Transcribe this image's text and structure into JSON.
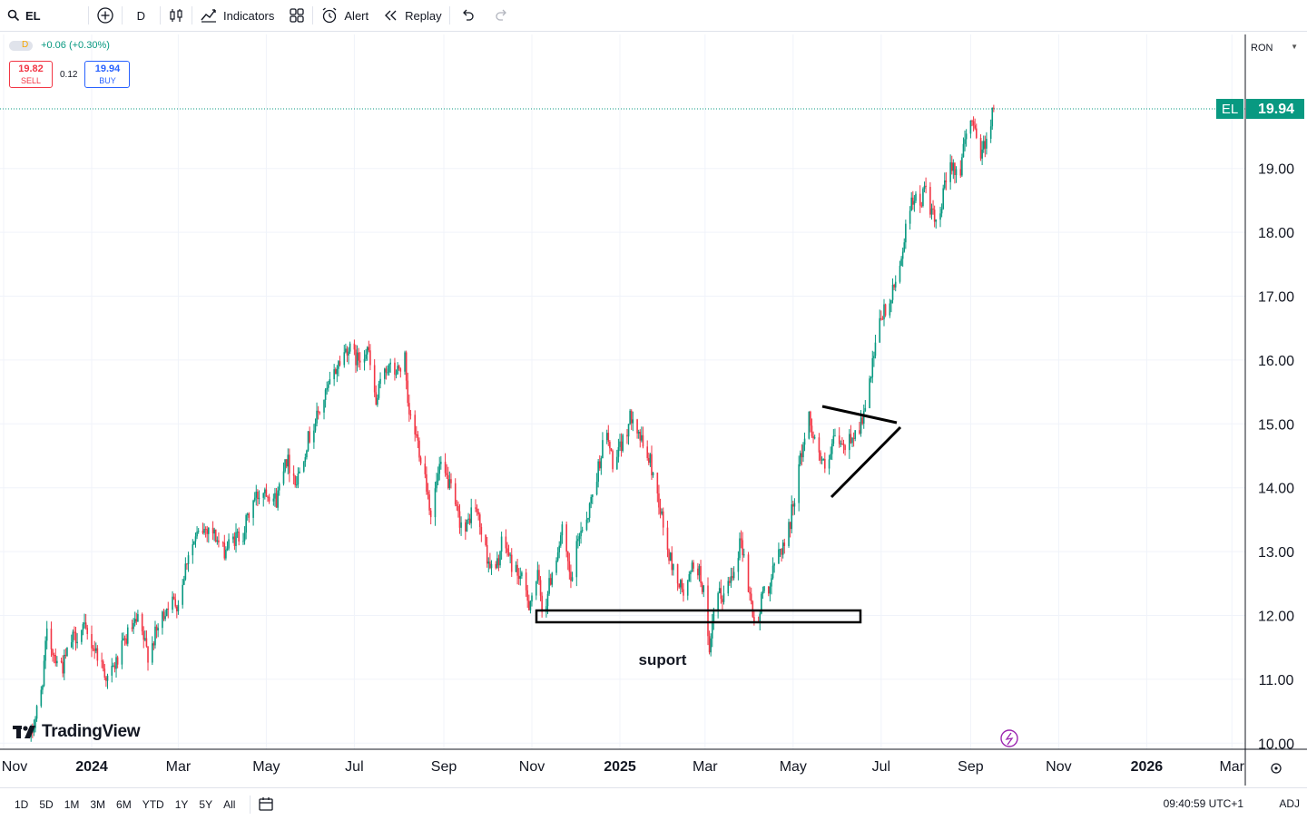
{
  "toolbar": {
    "symbol": "EL",
    "interval": "D",
    "indicators_label": "Indicators",
    "alert_label": "Alert",
    "replay_label": "Replay"
  },
  "legend": {
    "interval_badge": "D",
    "change": "+0.06 (+0.30%)",
    "sell_price": "19.82",
    "sell_label": "SELL",
    "spread": "0.12",
    "buy_price": "19.94",
    "buy_label": "BUY"
  },
  "currency": "RON",
  "price_axis": {
    "ticks": [
      "19.00",
      "18.00",
      "17.00",
      "16.00",
      "15.00",
      "14.00",
      "13.00",
      "12.00",
      "11.00",
      "10.00"
    ],
    "last_symbol": "EL",
    "last_price": "19.94"
  },
  "time_axis": {
    "ticks": [
      "Nov",
      "2024",
      "Mar",
      "May",
      "Jul",
      "Sep",
      "Nov",
      "2025",
      "Mar",
      "May",
      "Jul",
      "Sep",
      "Nov",
      "2026",
      "Mar"
    ]
  },
  "annotation_text": "suport",
  "brand": "TradingView",
  "ranges": [
    "1D",
    "5D",
    "1M",
    "3M",
    "6M",
    "YTD",
    "1Y",
    "5Y",
    "All"
  ],
  "clock": "09:40:59 UTC+1",
  "adj_label": "ADJ",
  "colors": {
    "up": "#089981",
    "down": "#f23645",
    "last_price_bg": "#089981"
  },
  "chart_data": {
    "type": "candlestick",
    "symbol": "EL",
    "interval": "D",
    "currency": "RON",
    "last_price": 19.94,
    "ylim": [
      10.0,
      19.94
    ],
    "path": [
      [
        "2023-11-20",
        10.1
      ],
      [
        "2023-11-27",
        10.8
      ],
      [
        "2023-12-01",
        11.7
      ],
      [
        "2023-12-06",
        11.4
      ],
      [
        "2023-12-12",
        11.2
      ],
      [
        "2023-12-18",
        11.6
      ],
      [
        "2023-12-26",
        11.8
      ],
      [
        "2024-01-05",
        11.4
      ],
      [
        "2024-01-12",
        11.0
      ],
      [
        "2024-01-19",
        11.3
      ],
      [
        "2024-01-26",
        11.7
      ],
      [
        "2024-02-02",
        11.9
      ],
      [
        "2024-02-09",
        11.4
      ],
      [
        "2024-02-16",
        11.8
      ],
      [
        "2024-02-23",
        12.2
      ],
      [
        "2024-03-01",
        12.2
      ],
      [
        "2024-03-08",
        13.0
      ],
      [
        "2024-03-16",
        13.3
      ],
      [
        "2024-03-23",
        13.4
      ],
      [
        "2024-04-01",
        13.0
      ],
      [
        "2024-04-09",
        13.2
      ],
      [
        "2024-04-15",
        13.3
      ],
      [
        "2024-04-22",
        13.8
      ],
      [
        "2024-04-30",
        14.0
      ],
      [
        "2024-05-08",
        13.8
      ],
      [
        "2024-05-14",
        14.5
      ],
      [
        "2024-05-22",
        14.1
      ],
      [
        "2024-05-29",
        14.7
      ],
      [
        "2024-06-05",
        15.1
      ],
      [
        "2024-06-12",
        15.5
      ],
      [
        "2024-06-19",
        15.9
      ],
      [
        "2024-06-26",
        16.2
      ],
      [
        "2024-07-03",
        16.0
      ],
      [
        "2024-07-10",
        16.2
      ],
      [
        "2024-07-16",
        15.3
      ],
      [
        "2024-07-22",
        15.9
      ],
      [
        "2024-07-30",
        15.8
      ],
      [
        "2024-08-05",
        16.0
      ],
      [
        "2024-08-07",
        15.2
      ],
      [
        "2024-08-13",
        14.8
      ],
      [
        "2024-08-19",
        14.2
      ],
      [
        "2024-08-23",
        13.6
      ],
      [
        "2024-08-29",
        14.3
      ],
      [
        "2024-09-04",
        14.1
      ],
      [
        "2024-09-10",
        13.6
      ],
      [
        "2024-09-16",
        13.3
      ],
      [
        "2024-09-22",
        13.8
      ],
      [
        "2024-09-30",
        13.0
      ],
      [
        "2024-10-06",
        12.6
      ],
      [
        "2024-10-12",
        13.2
      ],
      [
        "2024-10-18",
        12.8
      ],
      [
        "2024-10-24",
        12.6
      ],
      [
        "2024-10-30",
        12.2
      ],
      [
        "2024-11-05",
        12.6
      ],
      [
        "2024-11-09",
        12.0
      ],
      [
        "2024-11-15",
        12.7
      ],
      [
        "2024-11-22",
        13.3
      ],
      [
        "2024-11-28",
        12.5
      ],
      [
        "2024-12-04",
        13.3
      ],
      [
        "2024-12-10",
        13.6
      ],
      [
        "2024-12-16",
        14.2
      ],
      [
        "2024-12-22",
        14.9
      ],
      [
        "2024-12-28",
        14.3
      ],
      [
        "2025-01-04",
        14.8
      ],
      [
        "2025-01-10",
        15.2
      ],
      [
        "2025-01-16",
        14.7
      ],
      [
        "2025-01-22",
        14.4
      ],
      [
        "2025-01-28",
        13.8
      ],
      [
        "2025-02-03",
        13.0
      ],
      [
        "2025-02-09",
        12.6
      ],
      [
        "2025-02-15",
        12.3
      ],
      [
        "2025-02-22",
        12.9
      ],
      [
        "2025-02-28",
        12.4
      ],
      [
        "2025-03-04",
        11.3
      ],
      [
        "2025-03-08",
        12.3
      ],
      [
        "2025-03-14",
        12.3
      ],
      [
        "2025-03-20",
        12.7
      ],
      [
        "2025-03-26",
        13.2
      ],
      [
        "2025-04-01",
        12.3
      ],
      [
        "2025-04-06",
        11.7
      ],
      [
        "2025-04-10",
        12.4
      ],
      [
        "2025-04-15",
        12.5
      ],
      [
        "2025-04-21",
        13.0
      ],
      [
        "2025-04-27",
        13.2
      ],
      [
        "2025-05-02",
        13.9
      ],
      [
        "2025-05-08",
        14.7
      ],
      [
        "2025-05-12",
        15.1
      ],
      [
        "2025-05-18",
        14.6
      ],
      [
        "2025-05-24",
        14.2
      ],
      [
        "2025-05-30",
        14.8
      ],
      [
        "2025-06-05",
        14.6
      ],
      [
        "2025-06-10",
        14.8
      ],
      [
        "2025-06-15",
        14.9
      ],
      [
        "2025-06-20",
        15.2
      ],
      [
        "2025-06-25",
        15.9
      ],
      [
        "2025-07-01",
        16.7
      ],
      [
        "2025-07-06",
        16.8
      ],
      [
        "2025-07-12",
        17.3
      ],
      [
        "2025-07-18",
        18.0
      ],
      [
        "2025-07-22",
        18.6
      ],
      [
        "2025-07-27",
        18.4
      ],
      [
        "2025-08-01",
        18.7
      ],
      [
        "2025-08-05",
        18.3
      ],
      [
        "2025-08-09",
        18.0
      ],
      [
        "2025-08-14",
        18.7
      ],
      [
        "2025-08-19",
        19.1
      ],
      [
        "2025-08-24",
        18.9
      ],
      [
        "2025-08-29",
        19.5
      ],
      [
        "2025-09-03",
        19.8
      ],
      [
        "2025-09-08",
        19.2
      ],
      [
        "2025-09-12",
        19.5
      ],
      [
        "2025-09-17",
        19.94
      ]
    ],
    "drawings": [
      {
        "type": "rectangle",
        "label": "suport",
        "time_range": [
          "2024-10-30",
          "2025-05-27"
        ],
        "price_range": [
          11.9,
          12.1
        ]
      },
      {
        "type": "trendline",
        "from": [
          "2025-05-07",
          15.25
        ],
        "to": [
          "2025-06-01",
          15.02
        ]
      },
      {
        "type": "trendline",
        "from": [
          "2025-05-11",
          13.85
        ],
        "to": [
          "2025-06-03",
          14.95
        ]
      }
    ]
  }
}
